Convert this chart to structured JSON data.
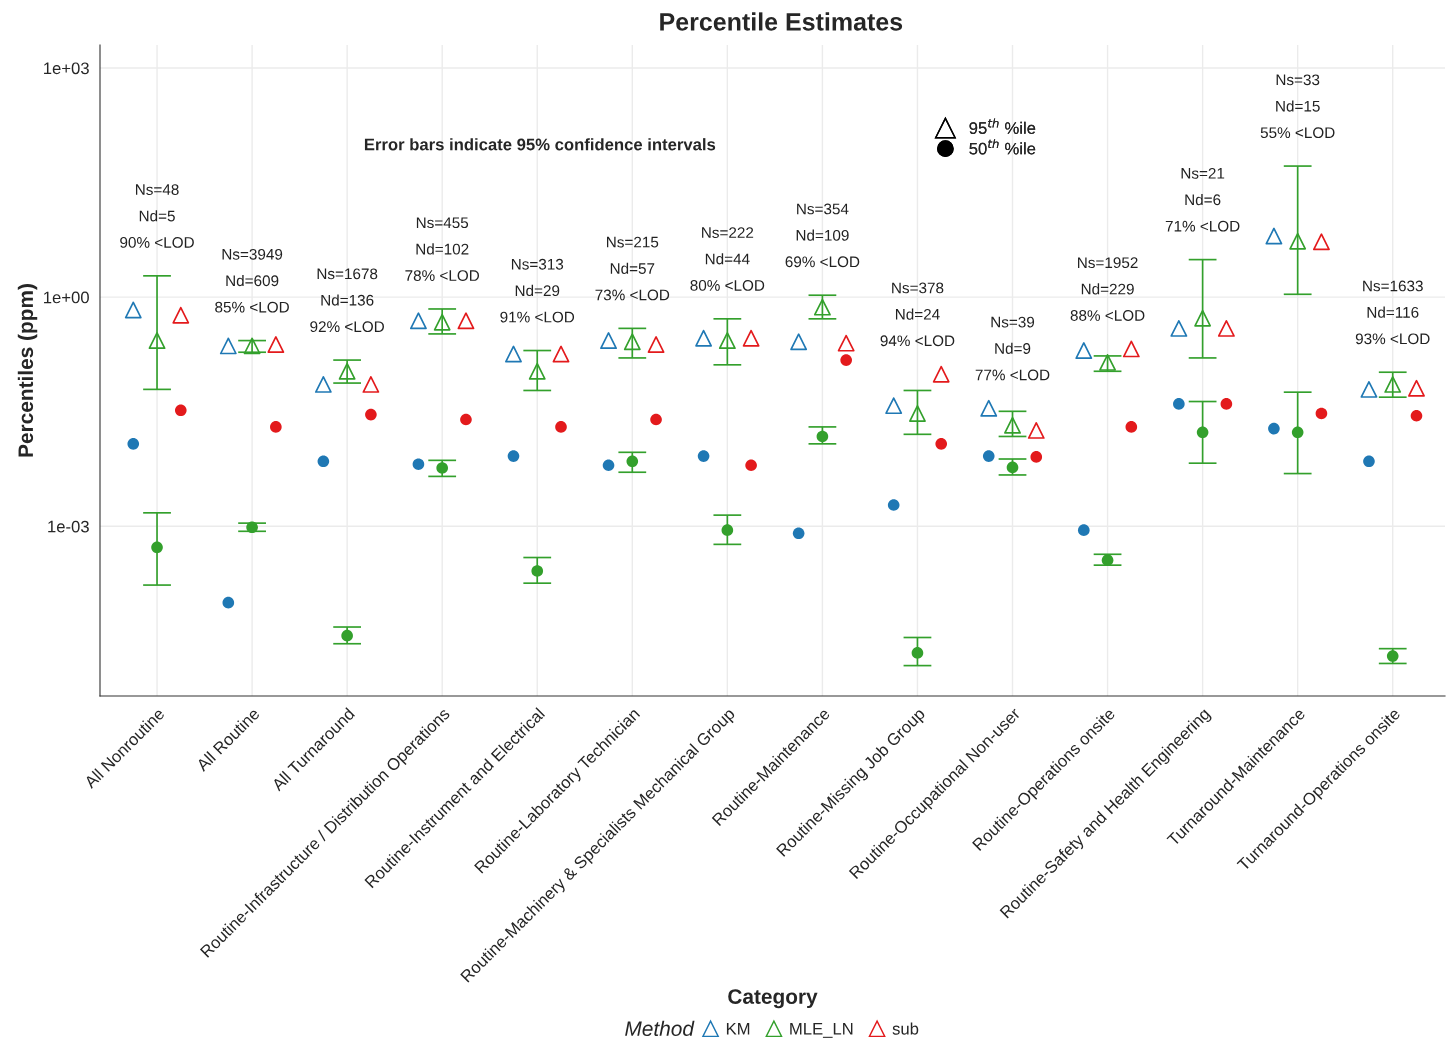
{
  "chart_data": {
    "type": "scatter",
    "title": "Percentile Estimates",
    "xlabel": "Category",
    "ylabel": "Percentiles (ppm)",
    "legend_title": "Method",
    "legend": "bottom",
    "grid": true,
    "log": "y",
    "categories": [
      "All Nonroutine",
      "All Routine",
      "All Turnaround",
      "Routine-Infrastructure / Distribution Operations",
      "Routine-Instrument and Electrical",
      "Routine-Laboratory Technician",
      "Routine-Machinery & Specialists Mechanical Group",
      "Routine-Maintenance",
      "Routine-Missing Job Group",
      "Routine-Occupational Non-user",
      "Routine-Operations onsite",
      "Routine-Safety and Health Engineering",
      "Turnaround-Maintenance",
      "Turnaround-Operations onsite"
    ],
    "ylim": [
      6e-06,
      2000
    ],
    "yticks": [
      {
        "value": 0.001,
        "label": "1e-03"
      },
      {
        "value": 1,
        "label": "1e+00"
      },
      {
        "value": 1000,
        "label": "1e+03"
      }
    ],
    "series": [
      {
        "name": "KM",
        "color": "#1f78b4",
        "marker": "triangle",
        "values": [
          0.68,
          0.23,
          0.072,
          0.49,
          0.18,
          0.27,
          0.29,
          0.26,
          0.038,
          0.035,
          0.2,
          0.39,
          6.3,
          0.062
        ]
      },
      {
        "name": "MLE_LN",
        "color": "#33a02c",
        "marker": "triangle",
        "values": [
          0.27,
          0.23,
          0.107,
          0.47,
          0.107,
          0.26,
          0.27,
          0.74,
          0.03,
          0.021,
          0.14,
          0.53,
          5.4,
          0.072
        ],
        "errors": [
          [
            0.062,
            1.9
          ],
          [
            0.19,
            0.27
          ],
          [
            0.075,
            0.15
          ],
          [
            0.33,
            0.7
          ],
          [
            0.06,
            0.2
          ],
          [
            0.16,
            0.39
          ],
          [
            0.13,
            0.52
          ],
          [
            0.52,
            1.06
          ],
          [
            0.016,
            0.06
          ],
          [
            0.015,
            0.032
          ],
          [
            0.107,
            0.17
          ],
          [
            0.16,
            3.1
          ],
          [
            1.09,
            52
          ],
          [
            0.049,
            0.104
          ]
        ]
      },
      {
        "name": "sub",
        "color": "#e31a1c",
        "marker": "triangle",
        "values": [
          0.58,
          0.24,
          0.072,
          0.49,
          0.18,
          0.24,
          0.29,
          0.25,
          0.098,
          0.018,
          0.21,
          0.39,
          5.3,
          0.064
        ]
      },
      {
        "color": "#1f78b4",
        "marker": "circle",
        "values": [
          0.012,
          0.0001,
          0.0071,
          0.0065,
          0.0083,
          0.0063,
          0.0083,
          0.00081,
          0.0019,
          0.0083,
          0.00089,
          0.04,
          0.019,
          0.0071
        ]
      },
      {
        "color": "#33a02c",
        "marker": "circle",
        "values": [
          0.00053,
          0.00097,
          3.7e-05,
          0.0058,
          0.00026,
          0.0071,
          0.00089,
          0.015,
          2.2e-05,
          0.0059,
          0.00036,
          0.017,
          0.017,
          2e-05
        ],
        "errors": [
          [
            0.00017,
            0.0015
          ],
          [
            0.00086,
            0.0011
          ],
          [
            2.9e-05,
            4.8e-05
          ],
          [
            0.0045,
            0.0073
          ],
          [
            0.00018,
            0.00039
          ],
          [
            0.0051,
            0.0093
          ],
          [
            0.00058,
            0.0014
          ],
          [
            0.012,
            0.02
          ],
          [
            1.5e-05,
            3.5e-05
          ],
          [
            0.0047,
            0.0076
          ],
          [
            0.00031,
            0.00043
          ],
          [
            0.0067,
            0.043
          ],
          [
            0.0049,
            0.057
          ],
          [
            1.6e-05,
            2.5e-05
          ]
        ]
      },
      {
        "color": "#e31a1c",
        "marker": "circle",
        "values": [
          0.033,
          0.02,
          0.029,
          0.025,
          0.02,
          0.025,
          0.0063,
          0.15,
          0.012,
          0.0081,
          0.02,
          0.04,
          0.03,
          0.028
        ]
      }
    ],
    "annotations": [
      "Error bars indicate 95% confidence intervals",
      "95$^{th}$ %ile",
      "50$^{th}$ %ile",
      "Ns=48\nNd=5\n90% <LOD",
      "Ns=3949\nNd=609\n85% <LOD",
      "Ns=1678\nNd=136\n92% <LOD",
      "Ns=455\nNd=102\n78% <LOD",
      "Ns=313\nNd=29\n91% <LOD",
      "Ns=215\nNd=57\n73% <LOD",
      "Ns=222\nNd=44\n80% <LOD",
      "Ns=354\nNd=109\n69% <LOD",
      "Ns=378\nNd=24\n94% <LOD",
      "Ns=39\nNd=9\n77% <LOD",
      "Ns=1952\nNd=229\n88% <LOD",
      "Ns=21\nNd=6\n71% <LOD",
      "Ns=33\nNd=15\n55% <LOD",
      "Ns=1633\nNd=116\n93% <LOD"
    ]
  }
}
